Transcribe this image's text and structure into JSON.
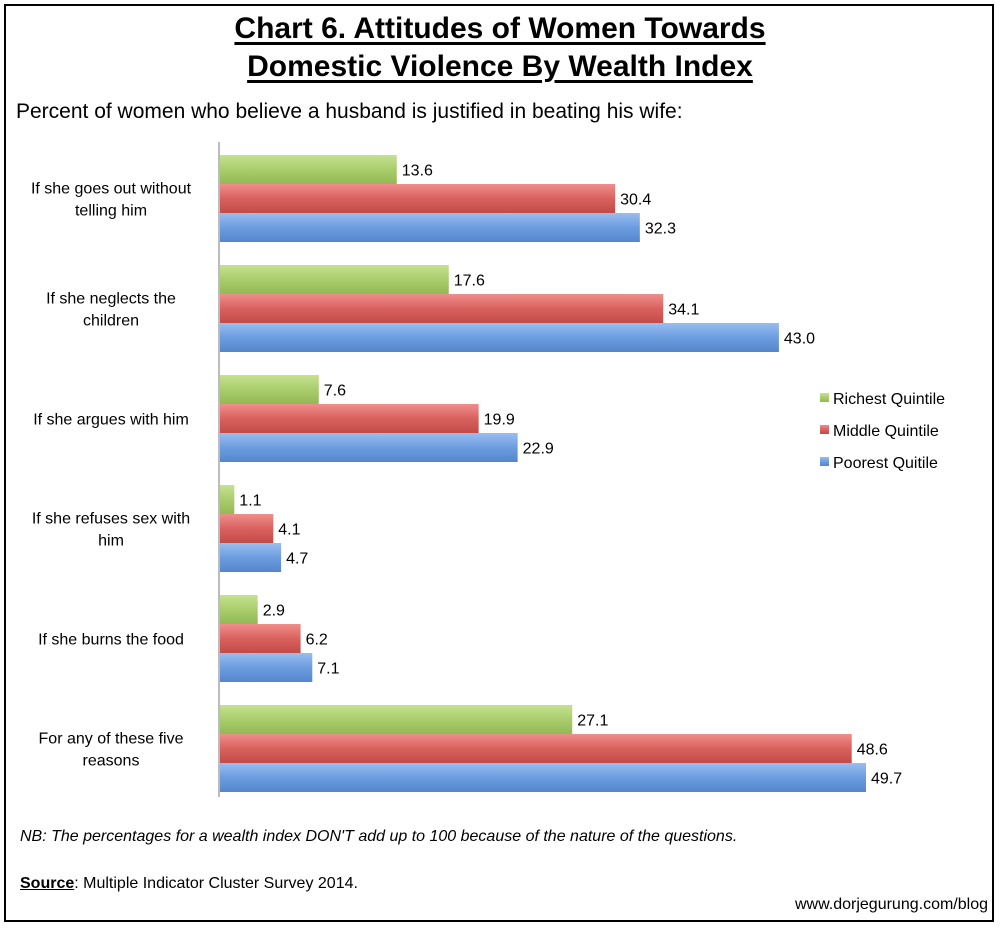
{
  "title_line1": "Chart 6. Attitudes of Women Towards",
  "title_line2": "Domestic Violence By Wealth Index",
  "subtitle": "Percent of women who believe a husband is justified in beating his wife:",
  "note": "NB: The percentages for a wealth index DON'T add up to 100 because of the nature of the questions.",
  "source_label": "Source",
  "source_text": ": Multiple Indicator Cluster Survey 2014.",
  "website": "www.dorjegurung.com/blog",
  "chart_data": {
    "type": "bar",
    "orientation": "horizontal",
    "categories": [
      [
        "If she goes out without",
        "telling him"
      ],
      [
        "If she neglects the",
        "children"
      ],
      [
        "If she argues with him"
      ],
      [
        "If she refuses sex with",
        "him"
      ],
      [
        "If she burns the food"
      ],
      [
        "For any of these five",
        "reasons"
      ]
    ],
    "series": [
      {
        "name": "Richest Quintile",
        "color": "#a9cd6b",
        "values": [
          13.6,
          17.6,
          7.6,
          1.1,
          2.9,
          27.1
        ]
      },
      {
        "name": "Middle Quintile",
        "color": "#d9625f",
        "values": [
          30.4,
          34.1,
          19.9,
          4.1,
          6.2,
          48.6
        ]
      },
      {
        "name": "Poorest Quitile",
        "color": "#6d9de0",
        "values": [
          32.3,
          43.0,
          22.9,
          4.7,
          7.1,
          49.7
        ]
      }
    ],
    "value_format": "one_decimal",
    "legend_position": "right",
    "grid": false
  }
}
